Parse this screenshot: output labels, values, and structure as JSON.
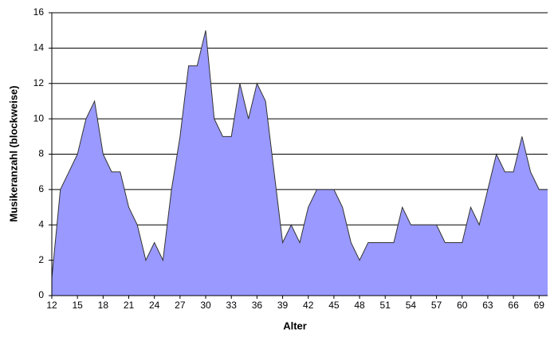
{
  "chart_data": {
    "type": "area",
    "xlabel": "Alter",
    "ylabel": "Musikeranzahl (blockweise)",
    "categories": [
      "12",
      null,
      null,
      "15",
      null,
      null,
      "18",
      null,
      null,
      "21",
      null,
      null,
      "24",
      null,
      null,
      "27",
      null,
      null,
      "30",
      null,
      null,
      "33",
      null,
      null,
      "36",
      null,
      null,
      "39",
      null,
      null,
      "42",
      null,
      null,
      "45",
      null,
      null,
      "48",
      null,
      null,
      "51",
      null,
      null,
      "54",
      null,
      null,
      "57",
      null,
      null,
      "60",
      null,
      null,
      "63",
      null,
      null,
      "66",
      null,
      null,
      "69",
      null
    ],
    "values": [
      1,
      6,
      7,
      8,
      10,
      11,
      8,
      7,
      7,
      5,
      4,
      2,
      3,
      2,
      6,
      9,
      13,
      13,
      15,
      10,
      9,
      9,
      12,
      10,
      12,
      11,
      7,
      3,
      4,
      3,
      5,
      6,
      6,
      6,
      5,
      3,
      2,
      3,
      3,
      3,
      3,
      5,
      4,
      4,
      4,
      4,
      3,
      3,
      3,
      5,
      4,
      6,
      8,
      7,
      7,
      9,
      7,
      6,
      6
    ],
    "color": "#9999ff",
    "ylim": [
      0,
      16
    ],
    "yticks": [
      0,
      2,
      4,
      6,
      8,
      10,
      12,
      14,
      16
    ],
    "grid": true
  }
}
